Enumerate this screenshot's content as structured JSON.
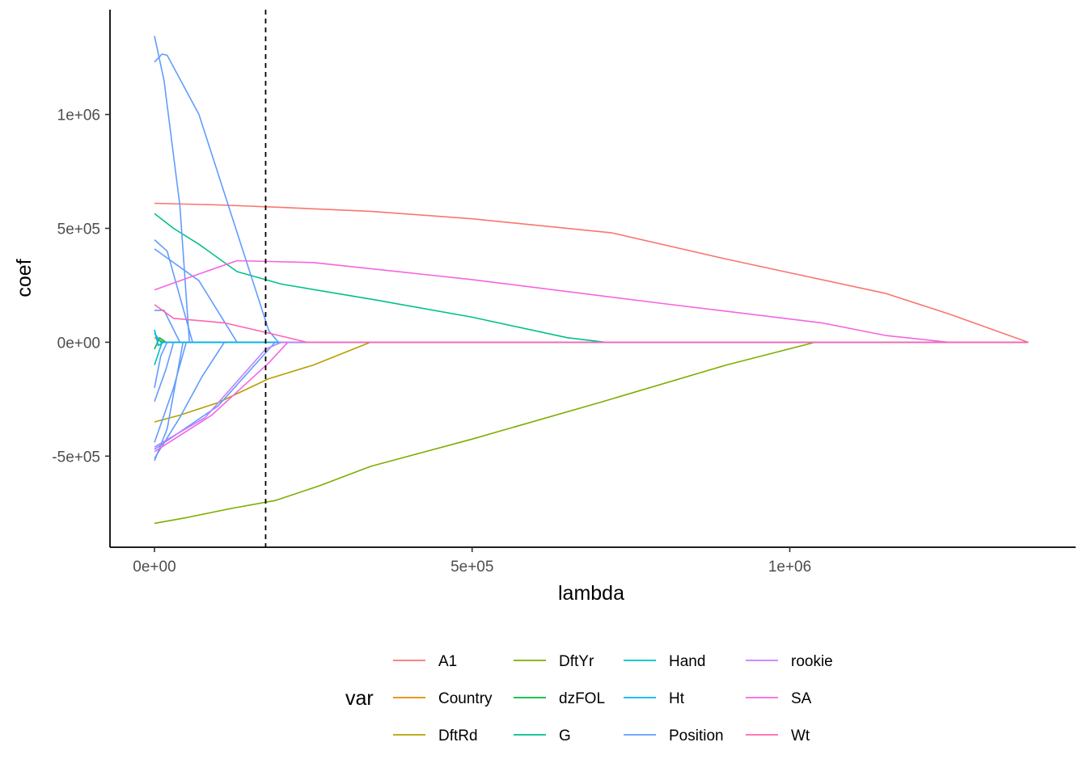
{
  "chart_data": {
    "type": "line",
    "xlabel": "lambda",
    "ylabel": "coef",
    "xlim": [
      -70000,
      1450000
    ],
    "ylim": [
      -900000,
      1460000
    ],
    "x_ticks": [
      {
        "value": 0,
        "label": "0e+00"
      },
      {
        "value": 500000,
        "label": "5e+05"
      },
      {
        "value": 1000000,
        "label": "1e+06"
      }
    ],
    "y_ticks": [
      {
        "value": -500000,
        "label": "-5e+05"
      },
      {
        "value": 0,
        "label": "0e+00"
      },
      {
        "value": 500000,
        "label": "5e+05"
      },
      {
        "value": 1000000,
        "label": "1e+06"
      }
    ],
    "grid": false,
    "vline": {
      "x": 175000,
      "style": "dashed",
      "color": "#000000"
    },
    "legend": {
      "title": "var",
      "position": "bottom",
      "columns": [
        [
          "A1",
          "Country",
          "DftRd"
        ],
        [
          "DftYr",
          "dzFOL",
          "G"
        ],
        [
          "Hand",
          "Ht",
          "Position"
        ],
        [
          "rookie",
          "SA",
          "Wt"
        ]
      ]
    },
    "series": [
      {
        "name": "A1",
        "color": "#F8766D",
        "lines": [
          [
            [
              0,
              610000
            ],
            [
              100000,
              603000
            ],
            [
              200000,
              592000
            ],
            [
              340000,
              575000
            ],
            [
              500000,
              542000
            ],
            [
              720000,
              480000
            ],
            [
              900000,
              365000
            ],
            [
              1150000,
              215000
            ],
            [
              1250000,
              125000
            ],
            [
              1375000,
              0
            ]
          ]
        ]
      },
      {
        "name": "Country",
        "color": "#DE8C00",
        "lines": [
          [
            [
              0,
              20000
            ],
            [
              6000,
              12000
            ],
            [
              15000,
              0
            ],
            [
              1375000,
              0
            ]
          ]
        ]
      },
      {
        "name": "DftRd",
        "color": "#B79F00",
        "lines": [
          [
            [
              0,
              -350000
            ],
            [
              40000,
              -320000
            ],
            [
              100000,
              -265000
            ],
            [
              180000,
              -160000
            ],
            [
              250000,
              -100000
            ],
            [
              340000,
              0
            ],
            [
              1375000,
              0
            ]
          ]
        ]
      },
      {
        "name": "DftYr",
        "color": "#7CAE00",
        "lines": [
          [
            [
              0,
              -795000
            ],
            [
              50000,
              -770000
            ],
            [
              120000,
              -730000
            ],
            [
              190000,
              -695000
            ],
            [
              260000,
              -630000
            ],
            [
              340000,
              -545000
            ],
            [
              500000,
              -425000
            ],
            [
              700000,
              -265000
            ],
            [
              900000,
              -100000
            ],
            [
              1040000,
              0
            ],
            [
              1375000,
              0
            ]
          ]
        ]
      },
      {
        "name": "dzFOL",
        "color": "#00BA38",
        "lines": [
          [
            [
              0,
              -30000
            ],
            [
              8000,
              20000
            ],
            [
              18000,
              0
            ],
            [
              1375000,
              0
            ]
          ]
        ]
      },
      {
        "name": "G",
        "color": "#00C08B",
        "lines": [
          [
            [
              0,
              565000
            ],
            [
              30000,
              500000
            ],
            [
              70000,
              430000
            ],
            [
              130000,
              310000
            ],
            [
              200000,
              255000
            ],
            [
              350000,
              185000
            ],
            [
              500000,
              110000
            ],
            [
              650000,
              20000
            ],
            [
              710000,
              0
            ],
            [
              1375000,
              0
            ]
          ]
        ]
      },
      {
        "name": "Hand",
        "color": "#00BFC4",
        "lines": [
          [
            [
              0,
              40000
            ],
            [
              10000,
              0
            ],
            [
              1375000,
              0
            ]
          ],
          [
            [
              0,
              -100000
            ],
            [
              12000,
              0
            ]
          ]
        ]
      },
      {
        "name": "Ht",
        "color": "#00B4F0",
        "lines": [
          [
            [
              0,
              55000
            ],
            [
              6000,
              -15000
            ],
            [
              14000,
              0
            ],
            [
              1375000,
              0
            ]
          ]
        ]
      },
      {
        "name": "Position",
        "color": "#619CFF",
        "lines": [
          [
            [
              0,
              1345000
            ],
            [
              15000,
              1150000
            ],
            [
              40000,
              600000
            ],
            [
              55000,
              0
            ]
          ],
          [
            [
              0,
              1230000
            ],
            [
              12000,
              1265000
            ],
            [
              20000,
              1260000
            ],
            [
              70000,
              1000000
            ],
            [
              180000,
              50000
            ],
            [
              195000,
              0
            ],
            [
              1375000,
              0
            ]
          ],
          [
            [
              0,
              450000
            ],
            [
              20000,
              400000
            ],
            [
              60000,
              0
            ]
          ],
          [
            [
              0,
              140000
            ],
            [
              15000,
              140000
            ],
            [
              40000,
              0
            ]
          ],
          [
            [
              0,
              410000
            ],
            [
              70000,
              270000
            ],
            [
              130000,
              0
            ]
          ],
          [
            [
              0,
              -520000
            ],
            [
              20000,
              -380000
            ],
            [
              45000,
              0
            ]
          ],
          [
            [
              0,
              -470000
            ],
            [
              100000,
              -280000
            ],
            [
              190000,
              0
            ]
          ],
          [
            [
              0,
              -200000
            ],
            [
              10000,
              -60000
            ],
            [
              20000,
              0
            ]
          ],
          [
            [
              0,
              -260000
            ],
            [
              18000,
              -120000
            ],
            [
              30000,
              0
            ]
          ],
          [
            [
              0,
              -510000
            ],
            [
              40000,
              -330000
            ],
            [
              75000,
              -150000
            ],
            [
              110000,
              0
            ]
          ],
          [
            [
              0,
              -440000
            ],
            [
              30000,
              -200000
            ],
            [
              50000,
              0
            ]
          ]
        ]
      },
      {
        "name": "rookie",
        "color": "#C77CFF",
        "lines": [
          [
            [
              0,
              -460000
            ],
            [
              80000,
              -330000
            ],
            [
              175000,
              -30000
            ],
            [
              200000,
              0
            ],
            [
              1375000,
              0
            ]
          ]
        ]
      },
      {
        "name": "SA",
        "color": "#F564E3",
        "lines": [
          [
            [
              0,
              230000
            ],
            [
              60000,
              290000
            ],
            [
              130000,
              358000
            ],
            [
              250000,
              350000
            ],
            [
              500000,
              275000
            ],
            [
              800000,
              170000
            ],
            [
              1050000,
              85000
            ],
            [
              1150000,
              30000
            ],
            [
              1250000,
              0
            ],
            [
              1375000,
              0
            ]
          ],
          [
            [
              0,
              -480000
            ],
            [
              90000,
              -320000
            ],
            [
              180000,
              -90000
            ],
            [
              210000,
              0
            ]
          ]
        ]
      },
      {
        "name": "Wt",
        "color": "#FF64B0",
        "lines": [
          [
            [
              0,
              165000
            ],
            [
              30000,
              105000
            ],
            [
              110000,
              85000
            ],
            [
              180000,
              40000
            ],
            [
              240000,
              0
            ],
            [
              1375000,
              0
            ]
          ]
        ]
      }
    ]
  }
}
